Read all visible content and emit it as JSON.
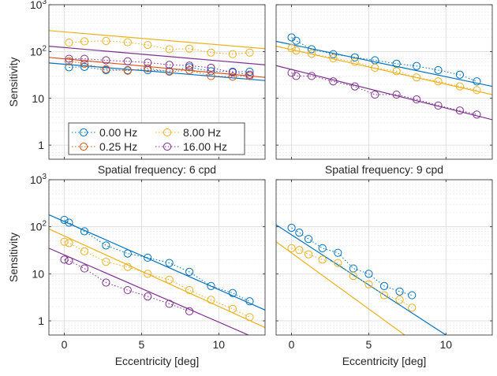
{
  "figure": {
    "ylabel": "Sensitivity",
    "xlabel": "Eccentricity [deg]"
  },
  "colors": {
    "0.00 Hz": "#0072bd",
    "0.25 Hz": "#d95319",
    "8.00 Hz": "#edb120",
    "16.00 Hz": "#7e2f8e"
  },
  "chart_data": [
    {
      "type": "scatter",
      "panel": "top-left",
      "title": "",
      "xlim": [
        -1,
        13
      ],
      "ylim": [
        0.5,
        1000
      ],
      "yscale": "log",
      "grid": true,
      "legend": {
        "position": "bottom-left",
        "columns": 2,
        "entries": [
          "0.00 Hz",
          "0.25 Hz",
          "8.00 Hz",
          "16.00 Hz"
        ]
      },
      "series": [
        {
          "name": "0.00 Hz",
          "markers": [
            [
              0.3,
              46
            ],
            [
              1.3,
              47
            ],
            [
              2.7,
              40
            ],
            [
              4.1,
              40
            ],
            [
              5.4,
              40
            ],
            [
              6.8,
              38
            ],
            [
              8.1,
              46
            ],
            [
              9.5,
              38
            ],
            [
              10.9,
              37
            ],
            [
              12,
              37
            ]
          ],
          "fit": [
            [
              -1,
              57
            ],
            [
              13,
              24
            ]
          ]
        },
        {
          "name": "0.25 Hz",
          "markers": [
            [
              0.3,
              62
            ],
            [
              1.3,
              55
            ],
            [
              2.7,
              42
            ],
            [
              4.1,
              39
            ],
            [
              5.4,
              44
            ],
            [
              6.8,
              37
            ],
            [
              8.1,
              40
            ],
            [
              9.5,
              30
            ],
            [
              10.9,
              29
            ],
            [
              12,
              30
            ]
          ],
          "fit": [
            [
              -1,
              75
            ],
            [
              13,
              28
            ]
          ]
        },
        {
          "name": "8.00 Hz",
          "markers": [
            [
              0.3,
              155
            ],
            [
              1.3,
              165
            ],
            [
              2.7,
              168
            ],
            [
              4.1,
              158
            ],
            [
              5.4,
              138
            ],
            [
              6.8,
              112
            ],
            [
              8.1,
              115
            ],
            [
              9.5,
              95
            ],
            [
              10.9,
              88
            ],
            [
              12,
              95
            ]
          ],
          "fit": [
            [
              -1,
              280
            ],
            [
              13,
              115
            ]
          ]
        },
        {
          "name": "16.00 Hz",
          "markers": [
            [
              0.3,
              70
            ],
            [
              1.3,
              70
            ],
            [
              2.7,
              65
            ],
            [
              4.1,
              62
            ],
            [
              5.4,
              58
            ],
            [
              6.8,
              52
            ],
            [
              8.1,
              50
            ],
            [
              9.5,
              45
            ],
            [
              10.9,
              36
            ],
            [
              12,
              32
            ]
          ],
          "fit": [
            [
              -1,
              130
            ],
            [
              13,
              52
            ]
          ]
        }
      ]
    },
    {
      "type": "scatter",
      "panel": "top-right",
      "title": "",
      "xlim": [
        -1,
        13
      ],
      "ylim": [
        0.5,
        1000
      ],
      "yscale": "log",
      "grid": true,
      "series": [
        {
          "name": "0.00 Hz",
          "markers": [
            [
              0,
              200
            ],
            [
              0.3,
              170
            ],
            [
              1.3,
              112
            ],
            [
              2.7,
              88
            ],
            [
              4.1,
              75
            ],
            [
              5.4,
              65
            ],
            [
              6.8,
              55
            ],
            [
              8.1,
              49
            ],
            [
              9.5,
              40
            ],
            [
              10.9,
              32
            ],
            [
              12,
              23
            ]
          ],
          "fit": [
            [
              -1,
              165
            ],
            [
              13,
              18
            ]
          ]
        },
        {
          "name": "8.00 Hz",
          "markers": [
            [
              0,
              118
            ],
            [
              0.3,
              105
            ],
            [
              1.3,
              90
            ],
            [
              2.7,
              72
            ],
            [
              4.1,
              60
            ],
            [
              5.4,
              45
            ],
            [
              6.8,
              38
            ],
            [
              8.1,
              28
            ],
            [
              9.5,
              23
            ],
            [
              10.9,
              18
            ],
            [
              12,
              15
            ]
          ],
          "fit": [
            [
              -1,
              130
            ],
            [
              13,
              12
            ]
          ]
        },
        {
          "name": "16.00 Hz",
          "markers": [
            [
              0,
              35
            ],
            [
              0.3,
              30
            ],
            [
              1.3,
              30
            ],
            [
              2.7,
              23
            ],
            [
              4.1,
              18
            ],
            [
              5.4,
              12
            ],
            [
              6.8,
              12
            ],
            [
              8.1,
              9.5
            ],
            [
              9.5,
              7
            ],
            [
              10.9,
              5.5
            ],
            [
              12,
              4.5
            ]
          ],
          "fit": [
            [
              -1,
              50
            ],
            [
              13,
              3.5
            ]
          ]
        }
      ]
    },
    {
      "type": "scatter",
      "panel": "bottom-left",
      "title": "Spatial frequency: 6 cpd",
      "xlim": [
        -1,
        13
      ],
      "ylim": [
        0.5,
        1000
      ],
      "yscale": "log",
      "grid": true,
      "series": [
        {
          "name": "0.00 Hz",
          "markers": [
            [
              0,
              140
            ],
            [
              0.3,
              122
            ],
            [
              1.3,
              80
            ],
            [
              2.7,
              40
            ],
            [
              4.1,
              27
            ],
            [
              5.4,
              22
            ],
            [
              6.8,
              17
            ],
            [
              8.1,
              11
            ],
            [
              9.5,
              5.5
            ],
            [
              10.9,
              3.9
            ],
            [
              12,
              2.6
            ]
          ],
          "fit": [
            [
              -1,
              180
            ],
            [
              13,
              1.7
            ]
          ]
        },
        {
          "name": "8.00 Hz",
          "markers": [
            [
              0,
              48
            ],
            [
              0.3,
              45
            ],
            [
              1.3,
              30
            ],
            [
              2.7,
              18
            ],
            [
              4.1,
              14
            ],
            [
              5.4,
              10
            ],
            [
              6.8,
              7.5
            ],
            [
              8.1,
              4.5
            ],
            [
              9.5,
              2.8
            ],
            [
              10.9,
              1.8
            ],
            [
              12,
              1.2
            ]
          ],
          "fit": [
            [
              -1,
              90
            ],
            [
              13,
              0.72
            ]
          ]
        },
        {
          "name": "16.00 Hz",
          "markers": [
            [
              0,
              20
            ],
            [
              0.3,
              19
            ],
            [
              1.3,
              13
            ],
            [
              2.7,
              6.5
            ],
            [
              4.1,
              4.5
            ],
            [
              5.4,
              3.3
            ],
            [
              6.8,
              2.3
            ],
            [
              8.1,
              1.6
            ]
          ],
          "fit": [
            [
              -1,
              35
            ],
            [
              13,
              0.35
            ]
          ]
        }
      ]
    },
    {
      "type": "scatter",
      "panel": "bottom-right",
      "title": "Spatial frequency: 9 cpd",
      "xlim": [
        -1,
        13
      ],
      "ylim": [
        0.5,
        1000
      ],
      "yscale": "log",
      "grid": true,
      "series": [
        {
          "name": "0.00 Hz",
          "markers": [
            [
              0,
              95
            ],
            [
              0.5,
              75
            ],
            [
              1.1,
              55
            ],
            [
              2,
              35
            ],
            [
              3,
              28
            ],
            [
              4,
              13
            ],
            [
              5,
              10
            ],
            [
              6,
              5.5
            ],
            [
              7,
              4.2
            ],
            [
              7.8,
              3.5
            ]
          ],
          "fit": [
            [
              -1,
              110
            ],
            [
              10,
              0.5
            ]
          ]
        },
        {
          "name": "8.00 Hz",
          "markers": [
            [
              0,
              35
            ],
            [
              0.5,
              32
            ],
            [
              1.1,
              26
            ],
            [
              2,
              20
            ],
            [
              3,
              17
            ],
            [
              4,
              9
            ],
            [
              5,
              6
            ],
            [
              6,
              3.5
            ],
            [
              7,
              2.8
            ],
            [
              7.8,
              1.9
            ]
          ],
          "fit": [
            [
              -1,
              48
            ],
            [
              9,
              0.2
            ]
          ]
        }
      ]
    }
  ]
}
